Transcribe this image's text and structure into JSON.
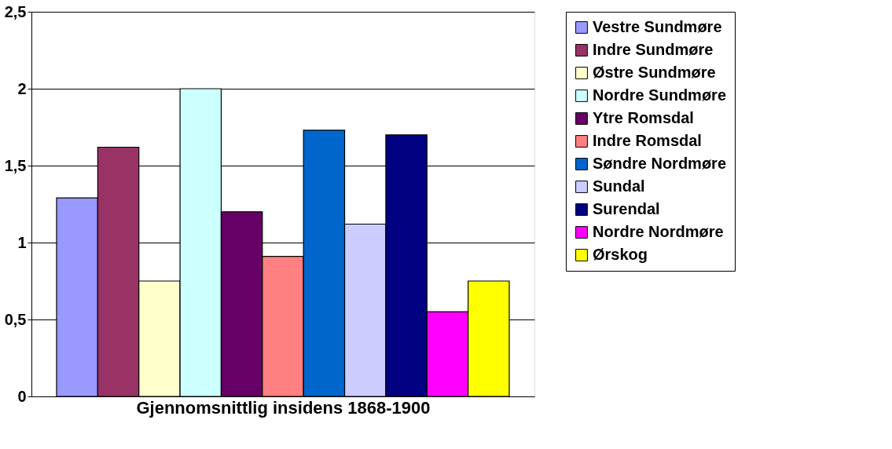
{
  "chart_data": {
    "type": "bar",
    "categories": [
      "Gjennomsnittlig insidens 1868-1900"
    ],
    "series": [
      {
        "name": "Vestre Sundmøre",
        "color": "#9999ff",
        "values": [
          1.29
        ]
      },
      {
        "name": "Indre Sundmøre",
        "color": "#993366",
        "values": [
          1.62
        ]
      },
      {
        "name": "Østre Sundmøre",
        "color": "#ffffcc",
        "values": [
          0.75
        ]
      },
      {
        "name": "Nordre Sundmøre",
        "color": "#ccffff",
        "values": [
          2.0
        ]
      },
      {
        "name": "Ytre Romsdal",
        "color": "#660066",
        "values": [
          1.2
        ]
      },
      {
        "name": "Indre Romsdal",
        "color": "#ff8080",
        "values": [
          0.91
        ]
      },
      {
        "name": "Søndre Nordmøre",
        "color": "#0066cc",
        "values": [
          1.73
        ]
      },
      {
        "name": "Sundal",
        "color": "#ccccff",
        "values": [
          1.12
        ]
      },
      {
        "name": "Surendal",
        "color": "#000080",
        "values": [
          1.7
        ]
      },
      {
        "name": "Nordre Nordmøre",
        "color": "#ff00ff",
        "values": [
          0.55
        ]
      },
      {
        "name": "Ørskog",
        "color": "#ffff00",
        "values": [
          0.75
        ]
      }
    ],
    "ylim": [
      0,
      2.5
    ],
    "yticks": [
      0,
      {
        "value": 0.5,
        "label": "0,5"
      },
      1,
      {
        "value": 1.5,
        "label": "1,5"
      },
      2,
      {
        "value": 2.5,
        "label": "2,5"
      }
    ],
    "grid": "y",
    "legend": "right"
  }
}
